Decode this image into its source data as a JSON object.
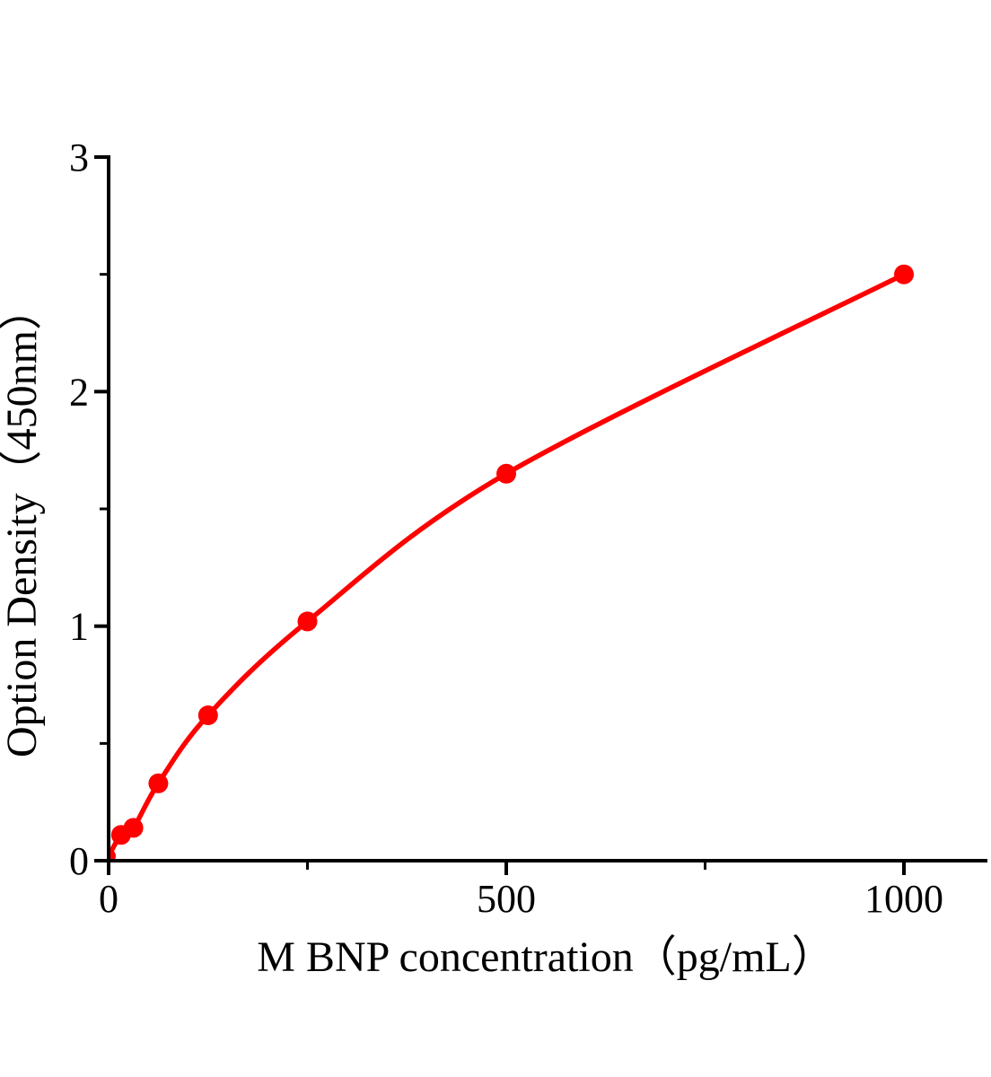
{
  "figure": {
    "background_color": "#ffffff",
    "text_color": "#000000"
  },
  "chart_data": {
    "type": "scatter",
    "title": "",
    "xlabel": "M BNP concentration（pg/mL）",
    "ylabel": "Option Density（450nm）",
    "line_color": "#ff0000",
    "marker_color": "#ff0000",
    "axis_color": "#000000",
    "grid": false,
    "legend": "none",
    "xlim": [
      0,
      1105
    ],
    "ylim": [
      0,
      3
    ],
    "points": [
      {
        "x": 0,
        "y": 0.02
      },
      {
        "x": 15.6,
        "y": 0.11
      },
      {
        "x": 31.2,
        "y": 0.14
      },
      {
        "x": 62.5,
        "y": 0.33
      },
      {
        "x": 125,
        "y": 0.62
      },
      {
        "x": 250,
        "y": 1.02
      },
      {
        "x": 500,
        "y": 1.65
      },
      {
        "x": 1000,
        "y": 2.5
      }
    ],
    "x_ticks": {
      "major": [
        {
          "value": 0,
          "label": "0"
        },
        {
          "value": 500,
          "label": "500"
        },
        {
          "value": 1000,
          "label": "1000"
        }
      ],
      "minor": [
        250,
        750
      ]
    },
    "y_ticks": {
      "major": [
        {
          "value": 0,
          "label": "0"
        },
        {
          "value": 1,
          "label": "1"
        },
        {
          "value": 2,
          "label": "2"
        },
        {
          "value": 3,
          "label": "3"
        }
      ],
      "minor": [
        0.5,
        1.5,
        2.5
      ]
    }
  }
}
